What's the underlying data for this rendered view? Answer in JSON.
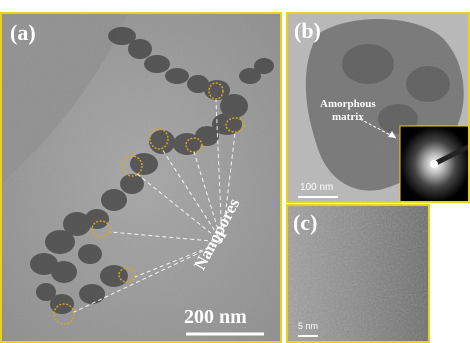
{
  "panels": {
    "a": {
      "label": "(a)",
      "annotation": "Nanopores",
      "scale_bar": "200 nm"
    },
    "b": {
      "label": "(b)",
      "annotation_line1": "Amorphous",
      "annotation_line2": "matrix",
      "scale_bar": "100 nm"
    },
    "c": {
      "label": "(c)",
      "scale_bar": "5 nm"
    }
  },
  "colors": {
    "frame": "#e8d21a",
    "pore_outline": "#e0a51a",
    "background_a": "#9a9a9a",
    "background_b": "#7e7e7e",
    "background_c": "#8a8a8a"
  }
}
